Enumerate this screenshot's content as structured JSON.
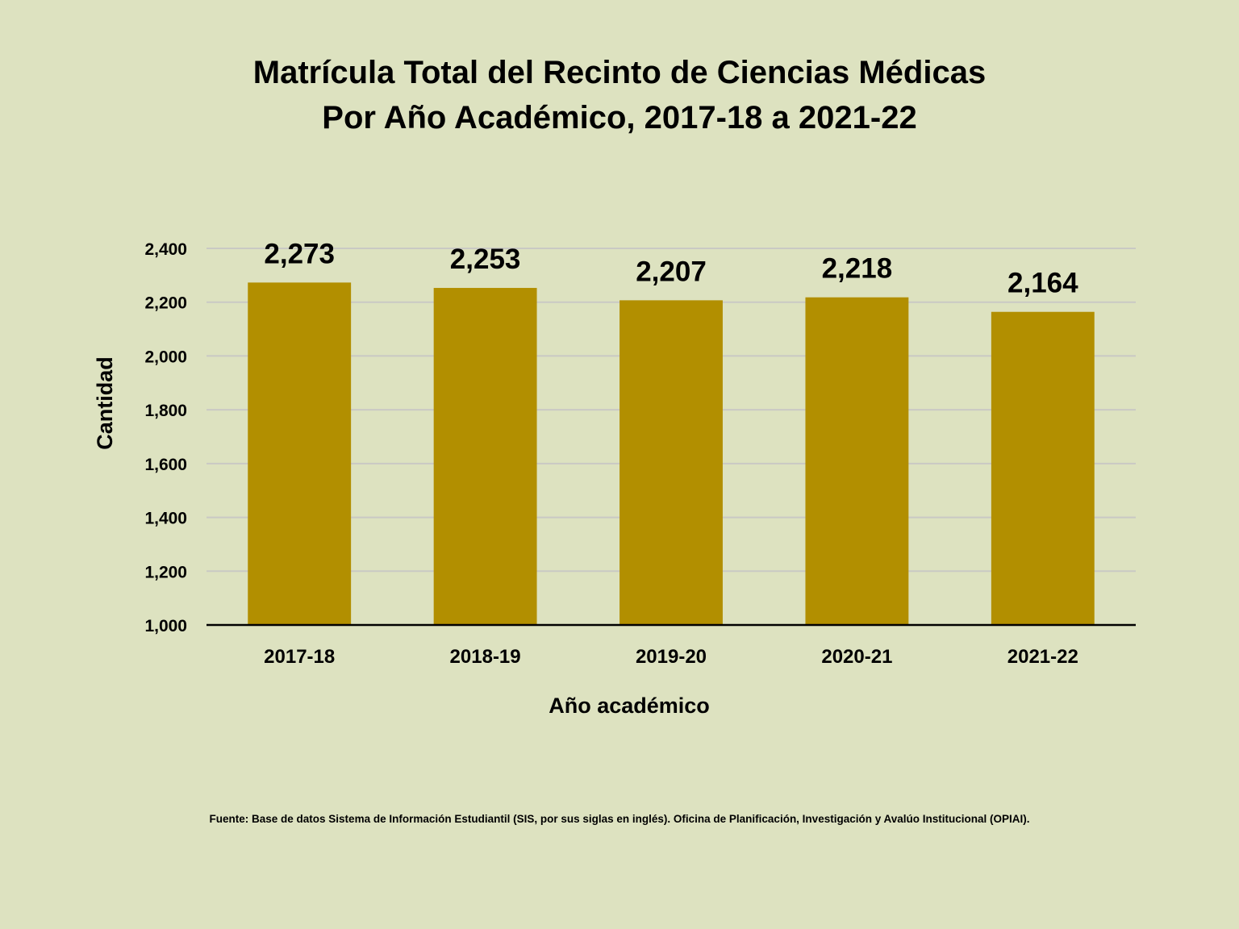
{
  "chart_data": {
    "type": "bar",
    "title": "Matrícula Total del Recinto de Ciencias Médicas",
    "subtitle": "Por Año Académico, 2017-18 a 2021-22",
    "xlabel": "Año académico",
    "ylabel": "Cantidad",
    "categories": [
      "2017-18",
      "2018-19",
      "2019-20",
      "2020-21",
      "2021-22"
    ],
    "values": [
      2273,
      2253,
      2207,
      2218,
      2164
    ],
    "value_labels": [
      "2,273",
      "2,253",
      "2,207",
      "2,218",
      "2,164"
    ],
    "ylim": [
      1000,
      2400
    ],
    "yticks": [
      1000,
      1200,
      1400,
      1600,
      1800,
      2000,
      2200,
      2400
    ],
    "ytick_labels": [
      "1,000",
      "1,200",
      "1,400",
      "1,600",
      "1,800",
      "2,000",
      "2,200",
      "2,400"
    ],
    "grid": true,
    "bar_color": "#b28f00"
  },
  "footnote": "Fuente: Base de datos  Sistema de Información Estudiantil (SIS, por sus siglas en inglés). Oficina de Planificación, Investigación y Avalúo Institucional (OPIAI)."
}
